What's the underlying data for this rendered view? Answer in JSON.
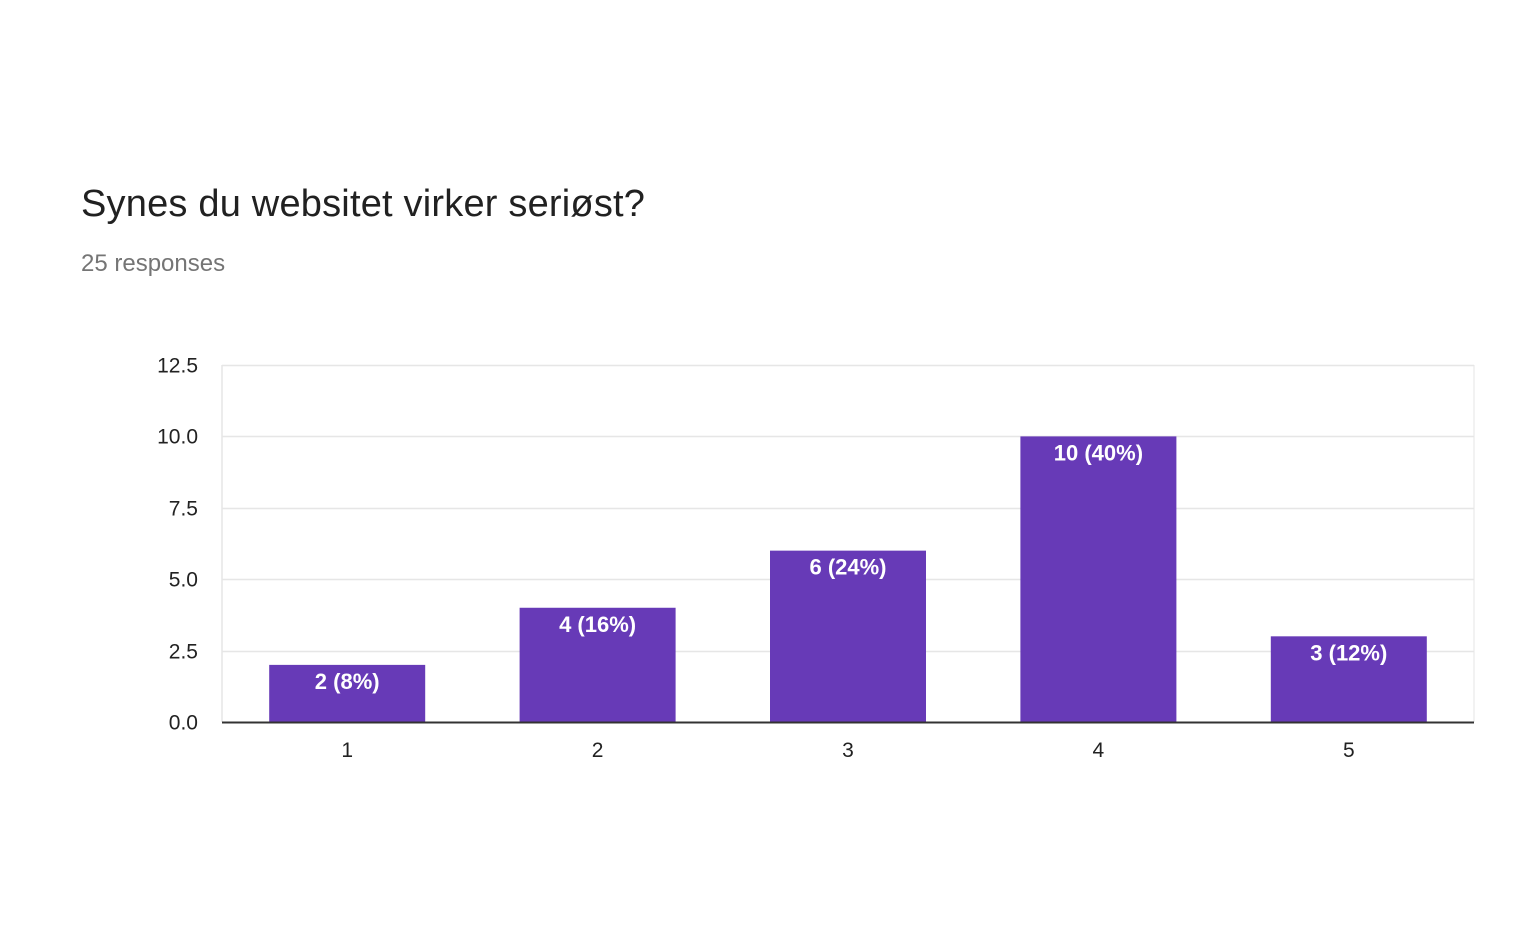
{
  "header": {
    "title": "Synes du websitet virker seriøst?",
    "subtitle": "25 responses"
  },
  "chart_data": {
    "type": "bar",
    "title": "Synes du websitet virker seriøst?",
    "subtitle": "25 responses",
    "categories": [
      "1",
      "2",
      "3",
      "4",
      "5"
    ],
    "values": [
      2,
      4,
      6,
      10,
      3
    ],
    "data_labels": [
      "2 (8%)",
      "4 (16%)",
      "6 (24%)",
      "10 (40%)",
      "3 (12%)"
    ],
    "yticks": [
      "0.0",
      "2.5",
      "5.0",
      "7.5",
      "10.0",
      "12.5"
    ],
    "ylim": [
      0,
      12.5
    ],
    "xlabel": "",
    "ylabel": "",
    "grid": true,
    "colors": {
      "bar": "#673ab7",
      "grid": "#e6e6e6",
      "axis": "#333333"
    }
  }
}
